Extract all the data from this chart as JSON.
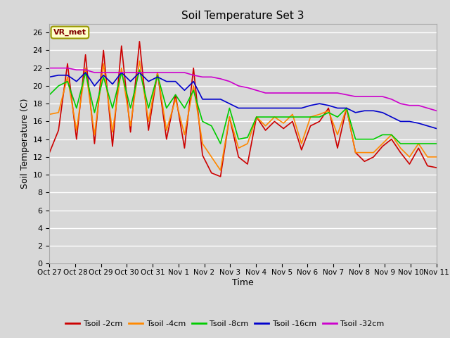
{
  "title": "Soil Temperature Set 3",
  "xlabel": "Time",
  "ylabel": "Soil Temperature (C)",
  "ylim": [
    0,
    27
  ],
  "yticks": [
    0,
    2,
    4,
    6,
    8,
    10,
    12,
    14,
    16,
    18,
    20,
    22,
    24,
    26
  ],
  "xtick_labels": [
    "Oct 27",
    "Oct 28",
    "Oct 29",
    "Oct 30",
    "Oct 31",
    "Nov 1",
    "Nov 2",
    "Nov 3",
    "Nov 4",
    "Nov 5",
    "Nov 6",
    "Nov 7",
    "Nov 8",
    "Nov 9",
    "Nov 10",
    "Nov 11"
  ],
  "background_color": "#d8d8d8",
  "plot_bg_color": "#d8d8d8",
  "grid_color": "#ffffff",
  "annotation_text": "VR_met",
  "annotation_bg": "#ffffcc",
  "annotation_border": "#999900",
  "colors": {
    "Tsoil -2cm": "#cc0000",
    "Tsoil -4cm": "#ff8800",
    "Tsoil -8cm": "#00cc00",
    "Tsoil -16cm": "#0000cc",
    "Tsoil -32cm": "#cc00cc"
  },
  "series": {
    "Tsoil -2cm": [
      12.5,
      15.0,
      22.5,
      14.0,
      23.5,
      13.5,
      24.0,
      13.2,
      24.5,
      14.8,
      25.0,
      15.0,
      21.5,
      14.0,
      19.0,
      13.0,
      22.0,
      12.2,
      10.2,
      9.8,
      16.5,
      12.0,
      11.2,
      16.5,
      15.0,
      16.0,
      15.2,
      16.0,
      12.8,
      15.5,
      16.0,
      17.5,
      13.0,
      17.5,
      12.5,
      11.5,
      12.0,
      13.2,
      14.0,
      12.5,
      11.2,
      13.0,
      11.0,
      10.8
    ],
    "Tsoil -4cm": [
      16.8,
      17.0,
      21.0,
      15.0,
      22.0,
      14.5,
      22.5,
      14.8,
      22.0,
      15.5,
      22.8,
      16.0,
      21.5,
      15.0,
      18.5,
      14.5,
      20.0,
      13.5,
      12.0,
      10.5,
      16.5,
      13.0,
      13.5,
      16.5,
      15.5,
      16.5,
      15.8,
      16.8,
      13.5,
      16.5,
      16.8,
      17.2,
      14.5,
      17.5,
      12.5,
      12.5,
      12.5,
      13.5,
      14.5,
      13.0,
      12.0,
      13.5,
      12.0,
      12.0
    ],
    "Tsoil -8cm": [
      19.0,
      20.0,
      20.5,
      17.5,
      21.5,
      17.0,
      21.0,
      17.5,
      21.5,
      17.5,
      21.8,
      17.5,
      21.2,
      17.5,
      19.0,
      17.5,
      19.5,
      16.0,
      15.5,
      13.5,
      17.5,
      14.0,
      14.2,
      16.5,
      16.5,
      16.5,
      16.5,
      16.5,
      16.5,
      16.5,
      16.5,
      17.0,
      16.5,
      17.5,
      14.0,
      14.0,
      14.0,
      14.5,
      14.5,
      13.5,
      13.5,
      13.5,
      13.5,
      13.5
    ],
    "Tsoil -16cm": [
      21.0,
      21.2,
      21.2,
      20.5,
      21.5,
      20.0,
      21.2,
      20.2,
      21.5,
      20.5,
      21.5,
      20.5,
      21.0,
      20.5,
      20.5,
      19.5,
      20.5,
      18.5,
      18.5,
      18.5,
      18.0,
      17.5,
      17.5,
      17.5,
      17.5,
      17.5,
      17.5,
      17.5,
      17.5,
      17.8,
      18.0,
      17.8,
      17.5,
      17.5,
      17.0,
      17.2,
      17.2,
      17.0,
      16.5,
      16.0,
      16.0,
      15.8,
      15.5,
      15.2
    ],
    "Tsoil -32cm": [
      22.0,
      22.0,
      22.0,
      21.8,
      21.8,
      21.5,
      21.5,
      21.5,
      21.5,
      21.5,
      21.5,
      21.5,
      21.5,
      21.5,
      21.5,
      21.5,
      21.2,
      21.0,
      21.0,
      20.8,
      20.5,
      20.0,
      19.8,
      19.5,
      19.2,
      19.2,
      19.2,
      19.2,
      19.2,
      19.2,
      19.2,
      19.2,
      19.2,
      19.0,
      18.8,
      18.8,
      18.8,
      18.8,
      18.5,
      18.0,
      17.8,
      17.8,
      17.5,
      17.2
    ]
  }
}
